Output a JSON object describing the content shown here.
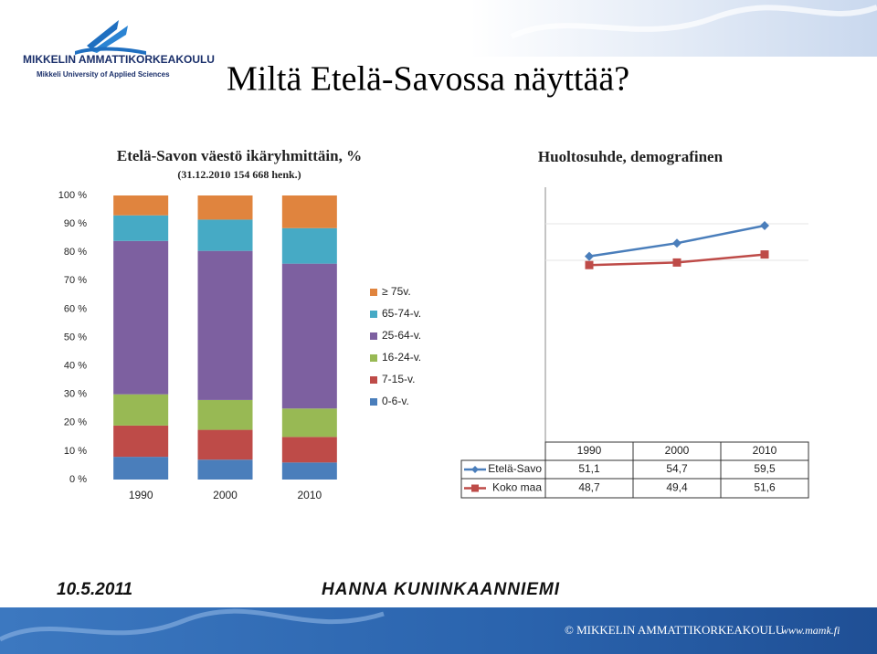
{
  "slide": {
    "logo_name": "MIKKELIN AMMATTIKORKEAKOULU",
    "logo_subtitle": "Mikkeli University of Applied Sciences",
    "title": "Miltä Etelä-Savossa näyttää?",
    "date": "10.5.2011",
    "author": "HANNA KUNINKAANNIEMI",
    "copyright": "© MIKKELIN AMMATTIKORKEAKOULU",
    "url": "www.mamk.fi"
  },
  "chart_data": [
    {
      "type": "stacked_bar",
      "title": "Etelä-Savon väestö ikäryhmittäin, %",
      "subtitle": "(31.12.2010 154 668 henk.)",
      "categories": [
        "1990",
        "2000",
        "2010"
      ],
      "series": [
        {
          "name": "0-6-v.",
          "color": "#4a7ebb",
          "values": [
            8,
            7,
            6
          ]
        },
        {
          "name": "7-15-v.",
          "color": "#be4b48",
          "values": [
            11,
            10.5,
            9
          ]
        },
        {
          "name": "16-24-v.",
          "color": "#98b954",
          "values": [
            11,
            10.5,
            10
          ]
        },
        {
          "name": "25-64-v.",
          "color": "#7d60a0",
          "values": [
            54,
            52.5,
            51
          ]
        },
        {
          "name": "65-74-v.",
          "color": "#46aac5",
          "values": [
            9,
            11,
            12.5
          ]
        },
        {
          "name": "≥ 75v.",
          "color": "#e0843e",
          "values": [
            7,
            8.5,
            11.5
          ]
        }
      ],
      "ylim": [
        0,
        100
      ],
      "yticks": [
        {
          "value": 0,
          "label": "0 %"
        },
        {
          "value": 10,
          "label": "10 %"
        },
        {
          "value": 20,
          "label": "20 %"
        },
        {
          "value": 30,
          "label": "30 %"
        },
        {
          "value": 40,
          "label": "40 %"
        },
        {
          "value": 50,
          "label": "50 %"
        },
        {
          "value": 60,
          "label": "60 %"
        },
        {
          "value": 70,
          "label": "70 %"
        },
        {
          "value": 80,
          "label": "80 %"
        },
        {
          "value": 90,
          "label": "90 %"
        },
        {
          "value": 100,
          "label": "100 %"
        }
      ],
      "legend": "right"
    },
    {
      "type": "line",
      "title": "Huoltosuhde, demografinen",
      "categories": [
        "1990",
        "2000",
        "2010"
      ],
      "series": [
        {
          "name": "Etelä-Savo",
          "color": "#4a7ebb",
          "marker": "diamond",
          "values": [
            51.1,
            54.7,
            59.5
          ],
          "value_labels": [
            "51,1",
            "54,7",
            "59,5"
          ]
        },
        {
          "name": "Koko maa",
          "color": "#be4b48",
          "marker": "square",
          "values": [
            48.7,
            49.4,
            51.6
          ],
          "value_labels": [
            "48,7",
            "49,4",
            "51,6"
          ]
        }
      ],
      "ylim": [
        0,
        70
      ],
      "yticks": [
        50,
        60
      ],
      "grid": true,
      "legend": "data_table"
    }
  ]
}
